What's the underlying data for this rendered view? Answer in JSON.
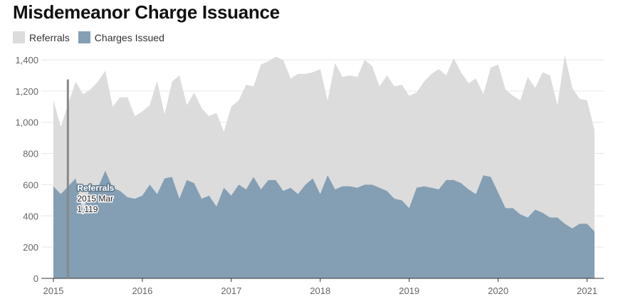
{
  "title": "Misdemeanor Charge Issuance",
  "chart_data": {
    "type": "area",
    "title": "Misdemeanor Charge Issuance",
    "x_start": "2015-01",
    "x_labels": [
      "2015",
      "2016",
      "2017",
      "2018",
      "2019",
      "2020",
      "2021"
    ],
    "ylim": [
      0,
      1400
    ],
    "y_ticks": [
      0,
      200,
      400,
      600,
      800,
      1000,
      1200,
      1400
    ],
    "y_tick_labels": [
      "0",
      "200",
      "400",
      "600",
      "800",
      "1,000",
      "1,200",
      "1,400"
    ],
    "grid": true,
    "legend_position": "top-left",
    "series": [
      {
        "name": "Referrals",
        "color": "#dcdcdc",
        "values": [
          1140,
          970,
          1119,
          1260,
          1180,
          1210,
          1260,
          1330,
          1100,
          1160,
          1160,
          1040,
          1070,
          1110,
          1265,
          1050,
          1260,
          1300,
          1110,
          1190,
          1090,
          1040,
          1060,
          940,
          1100,
          1140,
          1240,
          1230,
          1370,
          1390,
          1420,
          1400,
          1280,
          1310,
          1310,
          1320,
          1340,
          1140,
          1380,
          1290,
          1300,
          1290,
          1400,
          1360,
          1230,
          1300,
          1230,
          1240,
          1170,
          1190,
          1260,
          1310,
          1340,
          1300,
          1410,
          1320,
          1250,
          1280,
          1180,
          1350,
          1370,
          1210,
          1170,
          1140,
          1290,
          1220,
          1320,
          1300,
          1110,
          1430,
          1220,
          1150,
          1140,
          950
        ]
      },
      {
        "name": "Charges Issued",
        "color": "#849fb4",
        "values": [
          590,
          540,
          590,
          640,
          420,
          600,
          580,
          690,
          580,
          560,
          520,
          510,
          530,
          600,
          540,
          640,
          650,
          510,
          630,
          610,
          510,
          530,
          460,
          580,
          530,
          600,
          570,
          650,
          570,
          630,
          630,
          560,
          580,
          540,
          600,
          640,
          540,
          660,
          570,
          590,
          590,
          580,
          600,
          600,
          580,
          560,
          510,
          500,
          450,
          580,
          590,
          580,
          570,
          630,
          630,
          610,
          570,
          540,
          660,
          650,
          550,
          450,
          450,
          410,
          390,
          440,
          420,
          390,
          390,
          350,
          320,
          350,
          350,
          300
        ]
      }
    ]
  },
  "legend": [
    {
      "label": "Referrals",
      "color": "#dcdcdc"
    },
    {
      "label": "Charges Issued",
      "color": "#849fb4"
    }
  ],
  "tooltip": {
    "series": "Referrals",
    "period": "2015 Mar",
    "value": "1,119"
  }
}
